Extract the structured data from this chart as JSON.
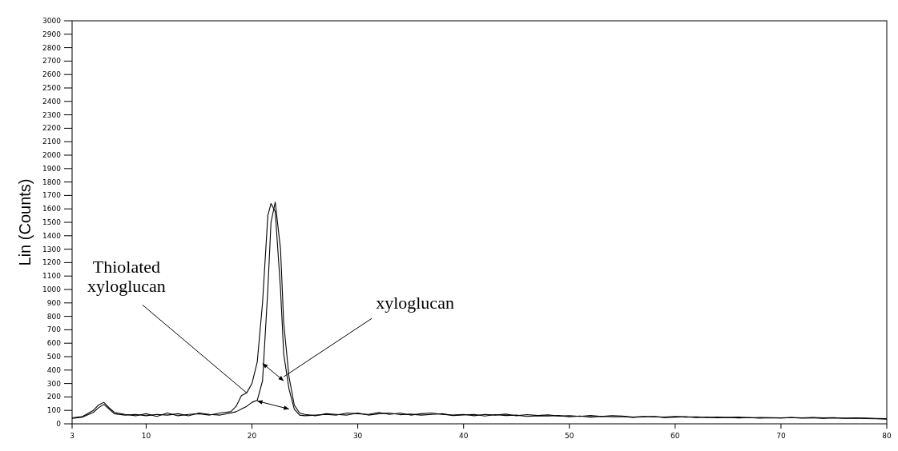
{
  "chart_data": {
    "type": "line",
    "ylabel": "Lin (Counts)",
    "xlim": [
      3,
      80
    ],
    "xticks": [
      3,
      10,
      20,
      30,
      40,
      50,
      60,
      70,
      80
    ],
    "ylim": [
      0,
      3000
    ],
    "yticks": [
      0,
      100,
      200,
      300,
      400,
      500,
      600,
      700,
      800,
      900,
      1000,
      1100,
      1200,
      1300,
      1400,
      1500,
      1600,
      1700,
      1800,
      1900,
      2000,
      2100,
      2200,
      2300,
      2400,
      2500,
      2600,
      2700,
      2800,
      2900,
      3000
    ],
    "marker": "none",
    "line_style": "solid",
    "x": [
      3,
      4,
      5,
      5.5,
      6,
      6.5,
      7,
      8,
      9,
      10,
      11,
      12,
      13,
      14,
      15,
      16,
      17,
      18,
      18.5,
      19,
      19.5,
      20,
      20.5,
      21,
      21.5,
      21.8,
      22.2,
      22.7,
      23,
      23.5,
      24,
      24.5,
      25,
      26,
      27,
      28,
      29,
      30,
      31,
      32,
      33,
      34,
      35,
      36,
      37,
      38,
      39,
      40,
      41,
      42,
      43,
      44,
      45,
      46,
      47,
      48,
      49,
      50,
      51,
      52,
      53,
      54,
      55,
      56,
      57,
      58,
      59,
      60,
      61,
      62,
      63,
      64,
      65,
      66,
      67,
      68,
      69,
      70,
      71,
      72,
      73,
      74,
      75,
      76,
      77,
      78,
      79,
      80
    ],
    "series": [
      {
        "color": "#000000",
        "values": [
          45,
          55,
          100,
          140,
          160,
          120,
          85,
          70,
          60,
          75,
          55,
          80,
          60,
          70,
          75,
          65,
          80,
          90,
          130,
          210,
          230,
          300,
          460,
          900,
          1550,
          1640,
          1580,
          1000,
          520,
          260,
          110,
          65,
          60,
          65,
          70,
          65,
          80,
          75,
          70,
          85,
          70,
          80,
          65,
          75,
          80,
          70,
          65,
          70,
          60,
          70,
          65,
          72,
          60,
          68,
          62,
          66,
          58,
          60,
          55,
          62,
          55,
          60,
          58,
          50,
          55,
          52,
          50,
          55,
          50,
          52,
          48,
          50,
          47,
          50,
          45,
          48,
          46,
          44,
          47,
          45,
          48,
          44,
          46,
          42,
          45,
          43,
          40,
          38
        ]
      },
      {
        "color": "#000000",
        "values": [
          40,
          50,
          85,
          120,
          145,
          110,
          75,
          65,
          70,
          60,
          70,
          65,
          75,
          60,
          80,
          70,
          65,
          80,
          90,
          110,
          130,
          160,
          175,
          320,
          1000,
          1500,
          1650,
          1300,
          750,
          350,
          140,
          80,
          70,
          60,
          75,
          70,
          65,
          80,
          65,
          75,
          80,
          68,
          72,
          65,
          70,
          75,
          62,
          66,
          70,
          58,
          68,
          62,
          65,
          55,
          60,
          58,
          62,
          52,
          58,
          50,
          56,
          52,
          54,
          48,
          52,
          55,
          47,
          50,
          53,
          46,
          50,
          45,
          48,
          44,
          47,
          42,
          45,
          43,
          46,
          42,
          44,
          40,
          43,
          41,
          42,
          39,
          37,
          35
        ]
      }
    ],
    "annotations": [
      {
        "text": "Thiolated\nxyloglucan",
        "x": 19.5,
        "y": 230
      },
      {
        "text": "xyloglucan",
        "x": 23,
        "y": 350
      }
    ]
  }
}
